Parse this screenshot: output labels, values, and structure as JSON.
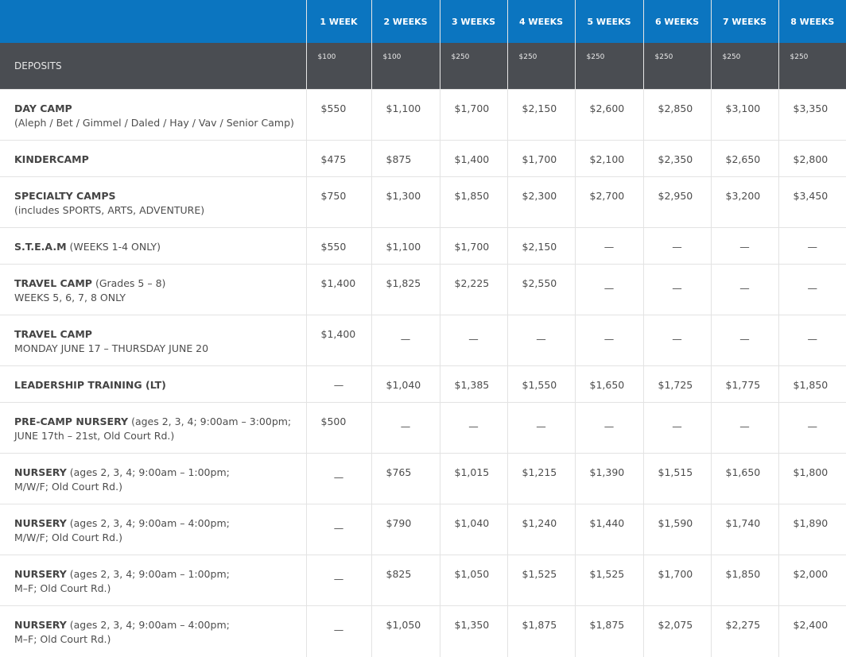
{
  "header": {
    "weeks": [
      "1 WEEK",
      "2 WEEKS",
      "3 WEEKS",
      "4 WEEKS",
      "5 WEEKS",
      "6 WEEKS",
      "7 WEEKS",
      "8 WEEKS"
    ]
  },
  "deposits": {
    "label": "DEPOSITS",
    "values": [
      "$100",
      "$100",
      "$250",
      "$250",
      "$250",
      "$250",
      "$250",
      "$250"
    ]
  },
  "rows": [
    {
      "name": "DAY CAMP",
      "suffix": "",
      "line2": "(Aleph / Bet / Gimmel / Daled / Hay / Vav / Senior Camp)",
      "prices": [
        "$550",
        "$1,100",
        "$1,700",
        "$2,150",
        "$2,600",
        "$2,850",
        "$3,100",
        "$3,350"
      ]
    },
    {
      "name": "KINDERCAMP",
      "suffix": "",
      "line2": "",
      "prices": [
        "$475",
        "$875",
        "$1,400",
        "$1,700",
        "$2,100",
        "$2,350",
        "$2,650",
        "$2,800"
      ]
    },
    {
      "name": "SPECIALTY CAMPS",
      "suffix": "",
      "line2": "(includes SPORTS, ARTS, ADVENTURE)",
      "prices": [
        "$750",
        "$1,300",
        "$1,850",
        "$2,300",
        "$2,700",
        "$2,950",
        "$3,200",
        "$3,450"
      ]
    },
    {
      "name": "S.T.E.A.M",
      "suffix": " (WEEKS 1-4 ONLY)",
      "line2": "",
      "prices": [
        "$550",
        "$1,100",
        "$1,700",
        "$2,150",
        "—",
        "—",
        "—",
        "—"
      ]
    },
    {
      "name": "TRAVEL CAMP",
      "suffix": " (Grades 5 – 8)",
      "line2": "WEEKS 5, 6, 7, 8 ONLY",
      "prices": [
        "$1,400",
        "$1,825",
        "$2,225",
        "$2,550",
        "—",
        "—",
        "—",
        "—"
      ]
    },
    {
      "name": "TRAVEL CAMP",
      "suffix": "",
      "line2": "MONDAY JUNE 17 – THURSDAY JUNE 20",
      "prices": [
        "$1,400",
        "—",
        "—",
        "—",
        "—",
        "—",
        "—",
        "—"
      ]
    },
    {
      "name": "LEADERSHIP TRAINING (LT)",
      "suffix": "",
      "line2": "",
      "prices": [
        "—",
        "$1,040",
        "$1,385",
        "$1,550",
        "$1,650",
        "$1,725",
        "$1,775",
        "$1,850"
      ]
    },
    {
      "name": "PRE-CAMP NURSERY",
      "suffix": " (ages 2, 3, 4; 9:00am – 3:00pm;",
      "line2": "JUNE 17th – 21st, Old Court Rd.)",
      "prices": [
        "$500",
        "—",
        "—",
        "—",
        "—",
        "—",
        "—",
        "—"
      ]
    },
    {
      "name": "NURSERY",
      "suffix": " (ages 2, 3, 4; 9:00am – 1:00pm;",
      "line2": "M/W/F; Old Court Rd.)",
      "prices": [
        "—",
        "$765",
        "$1,015",
        "$1,215",
        "$1,390",
        "$1,515",
        "$1,650",
        "$1,800"
      ]
    },
    {
      "name": "NURSERY",
      "suffix": " (ages 2, 3, 4; 9:00am – 4:00pm;",
      "line2": "M/W/F; Old Court Rd.)",
      "prices": [
        "—",
        "$790",
        "$1,040",
        "$1,240",
        "$1,440",
        "$1,590",
        "$1,740",
        "$1,890"
      ]
    },
    {
      "name": "NURSERY",
      "suffix": " (ages 2, 3, 4; 9:00am – 1:00pm;",
      "line2": "M–F; Old Court Rd.)",
      "prices": [
        "—",
        "$825",
        "$1,050",
        "$1,525",
        "$1,525",
        "$1,700",
        "$1,850",
        "$2,000"
      ]
    },
    {
      "name": "NURSERY",
      "suffix": " (ages 2, 3, 4; 9:00am – 4:00pm;",
      "line2": "M–F; Old Court Rd.)",
      "prices": [
        "—",
        "$1,050",
        "$1,350",
        "$1,875",
        "$1,875",
        "$2,075",
        "$2,275",
        "$2,400"
      ]
    }
  ]
}
